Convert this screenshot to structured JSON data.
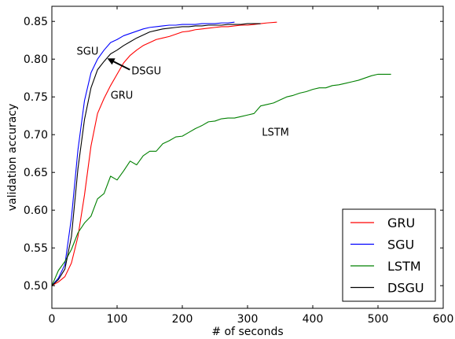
{
  "chart_data": {
    "type": "line",
    "xlabel": "# of seconds",
    "ylabel": "validation accuracy",
    "xlim": [
      0,
      600
    ],
    "ylim": [
      0.47,
      0.87
    ],
    "xticks": [
      "0",
      "100",
      "200",
      "300",
      "400",
      "500",
      "600"
    ],
    "yticks": [
      "0.50",
      "0.55",
      "0.60",
      "0.65",
      "0.70",
      "0.75",
      "0.80",
      "0.85"
    ],
    "grid": false,
    "legend": {
      "position": "lower-right",
      "entries": [
        "GRU",
        "SGU",
        "LSTM",
        "DSGU"
      ]
    },
    "annotations": [
      {
        "text": "SGU",
        "x": 38,
        "y": 0.811
      },
      {
        "text": "DSGU",
        "x": 122,
        "y": 0.785,
        "arrow_to": [
          85,
          0.801
        ]
      },
      {
        "text": "GRU",
        "x": 90,
        "y": 0.753
      },
      {
        "text": "LSTM",
        "x": 322,
        "y": 0.704
      }
    ],
    "series": [
      {
        "name": "GRU",
        "color": "#ff0000",
        "x": [
          0,
          10,
          20,
          30,
          40,
          50,
          60,
          70,
          80,
          90,
          100,
          110,
          120,
          130,
          140,
          150,
          160,
          170,
          180,
          190,
          200,
          210,
          220,
          230,
          240,
          250,
          260,
          270,
          280,
          290,
          300,
          310,
          320,
          330,
          345
        ],
        "y": [
          0.5,
          0.505,
          0.512,
          0.53,
          0.565,
          0.62,
          0.685,
          0.728,
          0.748,
          0.765,
          0.78,
          0.795,
          0.805,
          0.812,
          0.818,
          0.822,
          0.826,
          0.828,
          0.83,
          0.833,
          0.836,
          0.837,
          0.839,
          0.84,
          0.841,
          0.842,
          0.843,
          0.843,
          0.844,
          0.845,
          0.845,
          0.846,
          0.847,
          0.848,
          0.849
        ]
      },
      {
        "name": "SGU",
        "color": "#0000ff",
        "x": [
          0,
          10,
          20,
          30,
          40,
          50,
          60,
          70,
          80,
          90,
          100,
          110,
          120,
          130,
          140,
          150,
          160,
          170,
          180,
          190,
          200,
          210,
          220,
          230,
          240,
          250,
          260,
          270,
          280
        ],
        "y": [
          0.5,
          0.51,
          0.528,
          0.59,
          0.68,
          0.745,
          0.782,
          0.8,
          0.812,
          0.822,
          0.826,
          0.831,
          0.834,
          0.837,
          0.84,
          0.842,
          0.843,
          0.844,
          0.845,
          0.845,
          0.846,
          0.846,
          0.846,
          0.847,
          0.847,
          0.847,
          0.848,
          0.848,
          0.849
        ]
      },
      {
        "name": "LSTM",
        "color": "#008000",
        "x": [
          0,
          10,
          20,
          30,
          40,
          50,
          60,
          70,
          80,
          90,
          100,
          110,
          120,
          130,
          140,
          150,
          160,
          170,
          180,
          190,
          200,
          210,
          220,
          230,
          240,
          250,
          260,
          270,
          280,
          290,
          300,
          310,
          320,
          330,
          340,
          350,
          360,
          370,
          380,
          390,
          400,
          410,
          420,
          430,
          440,
          450,
          460,
          470,
          480,
          490,
          500,
          510,
          520
        ],
        "y": [
          0.5,
          0.52,
          0.532,
          0.548,
          0.57,
          0.583,
          0.592,
          0.615,
          0.622,
          0.645,
          0.64,
          0.652,
          0.665,
          0.66,
          0.672,
          0.678,
          0.678,
          0.688,
          0.692,
          0.697,
          0.698,
          0.703,
          0.708,
          0.712,
          0.717,
          0.718,
          0.721,
          0.722,
          0.722,
          0.724,
          0.726,
          0.728,
          0.738,
          0.74,
          0.742,
          0.746,
          0.75,
          0.752,
          0.755,
          0.757,
          0.76,
          0.762,
          0.762,
          0.765,
          0.766,
          0.768,
          0.77,
          0.772,
          0.775,
          0.778,
          0.78,
          0.78,
          0.78
        ]
      },
      {
        "name": "DSGU",
        "color": "#000000",
        "x": [
          0,
          10,
          20,
          30,
          40,
          50,
          60,
          70,
          80,
          90,
          100,
          110,
          120,
          130,
          140,
          150,
          160,
          170,
          180,
          190,
          200,
          210,
          220,
          230,
          240,
          250,
          260,
          270,
          280,
          290,
          300,
          310,
          320
        ],
        "y": [
          0.5,
          0.508,
          0.522,
          0.565,
          0.655,
          0.72,
          0.762,
          0.786,
          0.797,
          0.807,
          0.812,
          0.818,
          0.823,
          0.828,
          0.832,
          0.836,
          0.838,
          0.84,
          0.841,
          0.842,
          0.843,
          0.843,
          0.844,
          0.844,
          0.845,
          0.845,
          0.845,
          0.846,
          0.846,
          0.846,
          0.847,
          0.847,
          0.847
        ]
      }
    ]
  }
}
